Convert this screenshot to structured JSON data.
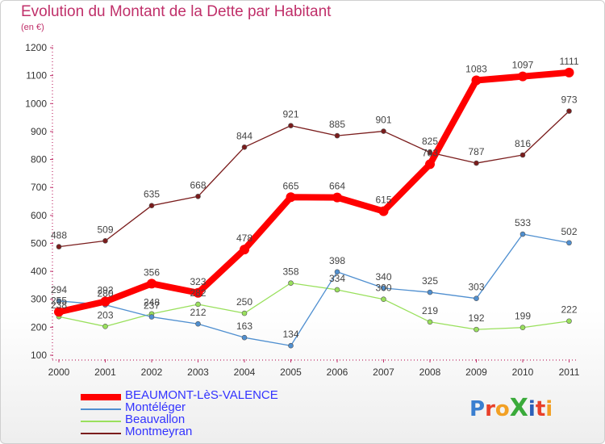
{
  "chart_data": {
    "type": "line",
    "title": "Evolution du Montant de la Dette par Habitant",
    "subtitle": "(en €)",
    "categories": [
      "2000",
      "2001",
      "2002",
      "2003",
      "2004",
      "2005",
      "2006",
      "2007",
      "2008",
      "2009",
      "2010",
      "2011"
    ],
    "ylim": [
      100,
      1200
    ],
    "yticks": [
      "100",
      "200",
      "300",
      "400",
      "500",
      "600",
      "700",
      "800",
      "900",
      "1000",
      "1100",
      "1200"
    ],
    "grid": false,
    "legend_position": "bottom-left",
    "series": [
      {
        "name": "BEAUMONT-LèS-VALENCE",
        "color": "#ff0000",
        "values": [
          255,
          292,
          356,
          323,
          478,
          665,
          664,
          615,
          783,
          1083,
          1097,
          1111
        ]
      },
      {
        "name": "Montéléger",
        "color": "#4f8fd0",
        "values": [
          294,
          280,
          237,
          212,
          163,
          134,
          398,
          340,
          325,
          303,
          533,
          502
        ]
      },
      {
        "name": "Beauvallon",
        "color": "#99e05c",
        "values": [
          238,
          203,
          248,
          282,
          250,
          358,
          334,
          300,
          219,
          192,
          199,
          222
        ]
      },
      {
        "name": "Montmeyran",
        "color": "#7a1c1c",
        "values": [
          488,
          509,
          635,
          668,
          844,
          921,
          885,
          901,
          825,
          787,
          816,
          973
        ]
      }
    ],
    "data_labels": [
      [
        "255",
        "292",
        "356",
        "323",
        "478",
        "665",
        "664",
        "615",
        "783",
        "1083",
        "1097",
        "1111"
      ],
      [
        "294",
        "280",
        "237",
        "212",
        "163",
        "134",
        "398",
        "340",
        "325",
        "303",
        "533",
        "502"
      ],
      [
        "238",
        "203",
        "248",
        "282",
        "250",
        "358",
        "334",
        "300",
        "219",
        "192",
        "199",
        "222"
      ],
      [
        "488",
        "509",
        "635",
        "668",
        "844",
        "921",
        "885",
        "901",
        "825",
        "787",
        "816",
        "973"
      ]
    ]
  },
  "logo": {
    "text": "ProXiti",
    "letters": [
      "P",
      "r",
      "o",
      "X",
      "i",
      "t",
      "i"
    ],
    "colors": [
      "#3a7fd0",
      "#e8402a",
      "#f2a024",
      "#3aaa3a",
      "#2b5fb8",
      "#e8402a",
      "#f2a024"
    ]
  }
}
